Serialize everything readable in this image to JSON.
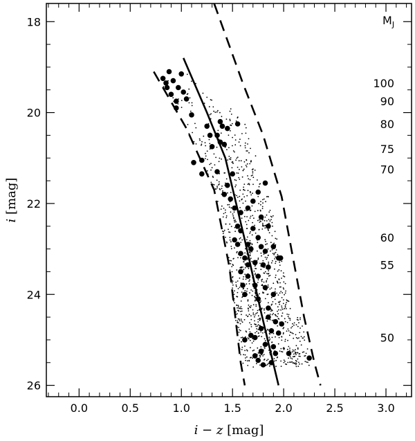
{
  "chart_data": {
    "type": "scatter",
    "title": "",
    "xlabel": {
      "var": "i − z",
      "unit": "[mag]"
    },
    "ylabel": {
      "var": "i",
      "unit": "[mag]"
    },
    "xlim": [
      -0.32,
      3.25
    ],
    "ylim": [
      26.25,
      17.6
    ],
    "y_inverted": true,
    "x_ticks": [
      0.0,
      0.5,
      1.0,
      1.5,
      2.0,
      2.5,
      3.0
    ],
    "x_tick_labels": [
      "0.0",
      "0.5",
      "1.0",
      "1.5",
      "2.0",
      "2.5",
      "3.0"
    ],
    "y_ticks": [
      18,
      20,
      22,
      24,
      26
    ],
    "y_tick_labels": [
      "18",
      "20",
      "22",
      "24",
      "26"
    ],
    "grid": false,
    "mj_header": {
      "main": "M",
      "sub": "J"
    },
    "mj_labels": [
      {
        "label": "100",
        "i": 19.35
      },
      {
        "label": "90",
        "i": 19.75
      },
      {
        "label": "80",
        "i": 20.25
      },
      {
        "label": "75",
        "i": 20.8
      },
      {
        "label": "70",
        "i": 21.25
      },
      {
        "label": "60",
        "i": 22.75
      },
      {
        "label": "55",
        "i": 23.35
      },
      {
        "label": "50",
        "i": 24.95
      }
    ],
    "lines": [
      {
        "name": "center",
        "style": "solid",
        "points": [
          [
            1.02,
            18.8
          ],
          [
            1.25,
            20.0
          ],
          [
            1.43,
            21.0
          ],
          [
            1.62,
            22.8
          ],
          [
            1.78,
            24.4
          ],
          [
            1.95,
            26.0
          ]
        ]
      },
      {
        "name": "left-bound",
        "style": "dashed",
        "points": [
          [
            0.73,
            19.1
          ],
          [
            1.05,
            20.35
          ],
          [
            1.32,
            21.7
          ],
          [
            1.47,
            23.4
          ],
          [
            1.58,
            25.5
          ],
          [
            1.62,
            26.0
          ]
        ]
      },
      {
        "name": "right-bound",
        "style": "dashed",
        "points": [
          [
            1.32,
            17.6
          ],
          [
            1.6,
            19.35
          ],
          [
            1.8,
            20.5
          ],
          [
            1.98,
            21.85
          ],
          [
            2.1,
            23.3
          ],
          [
            2.2,
            24.5
          ],
          [
            2.3,
            25.5
          ],
          [
            2.36,
            26.0
          ]
        ]
      }
    ],
    "large_points": [
      [
        0.82,
        19.25
      ],
      [
        0.85,
        19.35
      ],
      [
        0.86,
        19.45
      ],
      [
        0.88,
        19.1
      ],
      [
        0.9,
        19.6
      ],
      [
        0.92,
        19.3
      ],
      [
        0.95,
        19.75
      ],
      [
        0.97,
        19.45
      ],
      [
        1.0,
        19.15
      ],
      [
        1.02,
        19.55
      ],
      [
        0.95,
        19.9
      ],
      [
        1.05,
        19.7
      ],
      [
        1.1,
        20.05
      ],
      [
        1.25,
        20.3
      ],
      [
        1.28,
        20.5
      ],
      [
        1.35,
        20.5
      ],
      [
        1.38,
        20.2
      ],
      [
        1.4,
        20.3
      ],
      [
        1.45,
        20.35
      ],
      [
        1.55,
        20.25
      ],
      [
        1.3,
        20.75
      ],
      [
        1.38,
        20.65
      ],
      [
        1.42,
        20.7
      ],
      [
        1.2,
        21.05
      ],
      [
        1.2,
        21.35
      ],
      [
        1.35,
        21.3
      ],
      [
        1.5,
        21.35
      ],
      [
        1.45,
        21.6
      ],
      [
        1.42,
        21.8
      ],
      [
        1.48,
        21.9
      ],
      [
        1.52,
        22.1
      ],
      [
        1.58,
        22.2
      ],
      [
        1.55,
        22.5
      ],
      [
        1.65,
        22.1
      ],
      [
        1.7,
        21.95
      ],
      [
        1.75,
        21.75
      ],
      [
        1.82,
        21.55
      ],
      [
        1.78,
        22.3
      ],
      [
        1.58,
        22.6
      ],
      [
        1.7,
        22.55
      ],
      [
        1.75,
        22.75
      ],
      [
        1.85,
        22.5
      ],
      [
        1.52,
        22.8
      ],
      [
        1.55,
        22.9
      ],
      [
        1.65,
        22.9
      ],
      [
        1.68,
        23.0
      ],
      [
        1.78,
        22.95
      ],
      [
        1.82,
        23.05
      ],
      [
        1.9,
        22.95
      ],
      [
        1.95,
        23.2
      ],
      [
        1.97,
        23.2
      ],
      [
        1.58,
        23.1
      ],
      [
        1.62,
        23.2
      ],
      [
        1.65,
        23.35
      ],
      [
        1.72,
        23.3
      ],
      [
        1.8,
        23.35
      ],
      [
        1.85,
        23.4
      ],
      [
        1.58,
        23.5
      ],
      [
        1.65,
        23.6
      ],
      [
        1.75,
        23.6
      ],
      [
        1.6,
        23.8
      ],
      [
        1.72,
        23.8
      ],
      [
        1.82,
        23.85
      ],
      [
        1.62,
        24.0
      ],
      [
        1.75,
        24.1
      ],
      [
        1.9,
        24.0
      ],
      [
        1.85,
        24.5
      ],
      [
        1.92,
        24.6
      ],
      [
        1.98,
        24.65
      ],
      [
        1.78,
        24.75
      ],
      [
        1.88,
        24.8
      ],
      [
        1.95,
        24.85
      ],
      [
        1.68,
        24.9
      ],
      [
        1.72,
        24.95
      ],
      [
        1.82,
        25.1
      ],
      [
        1.9,
        25.15
      ],
      [
        1.78,
        25.25
      ],
      [
        1.72,
        25.35
      ],
      [
        1.92,
        25.3
      ],
      [
        1.75,
        25.45
      ],
      [
        1.88,
        25.5
      ],
      [
        1.8,
        25.55
      ],
      [
        2.05,
        25.3
      ],
      [
        2.25,
        25.4
      ],
      [
        1.12,
        21.1
      ],
      [
        1.62,
        25.0
      ],
      [
        1.85,
        24.3
      ]
    ]
  }
}
